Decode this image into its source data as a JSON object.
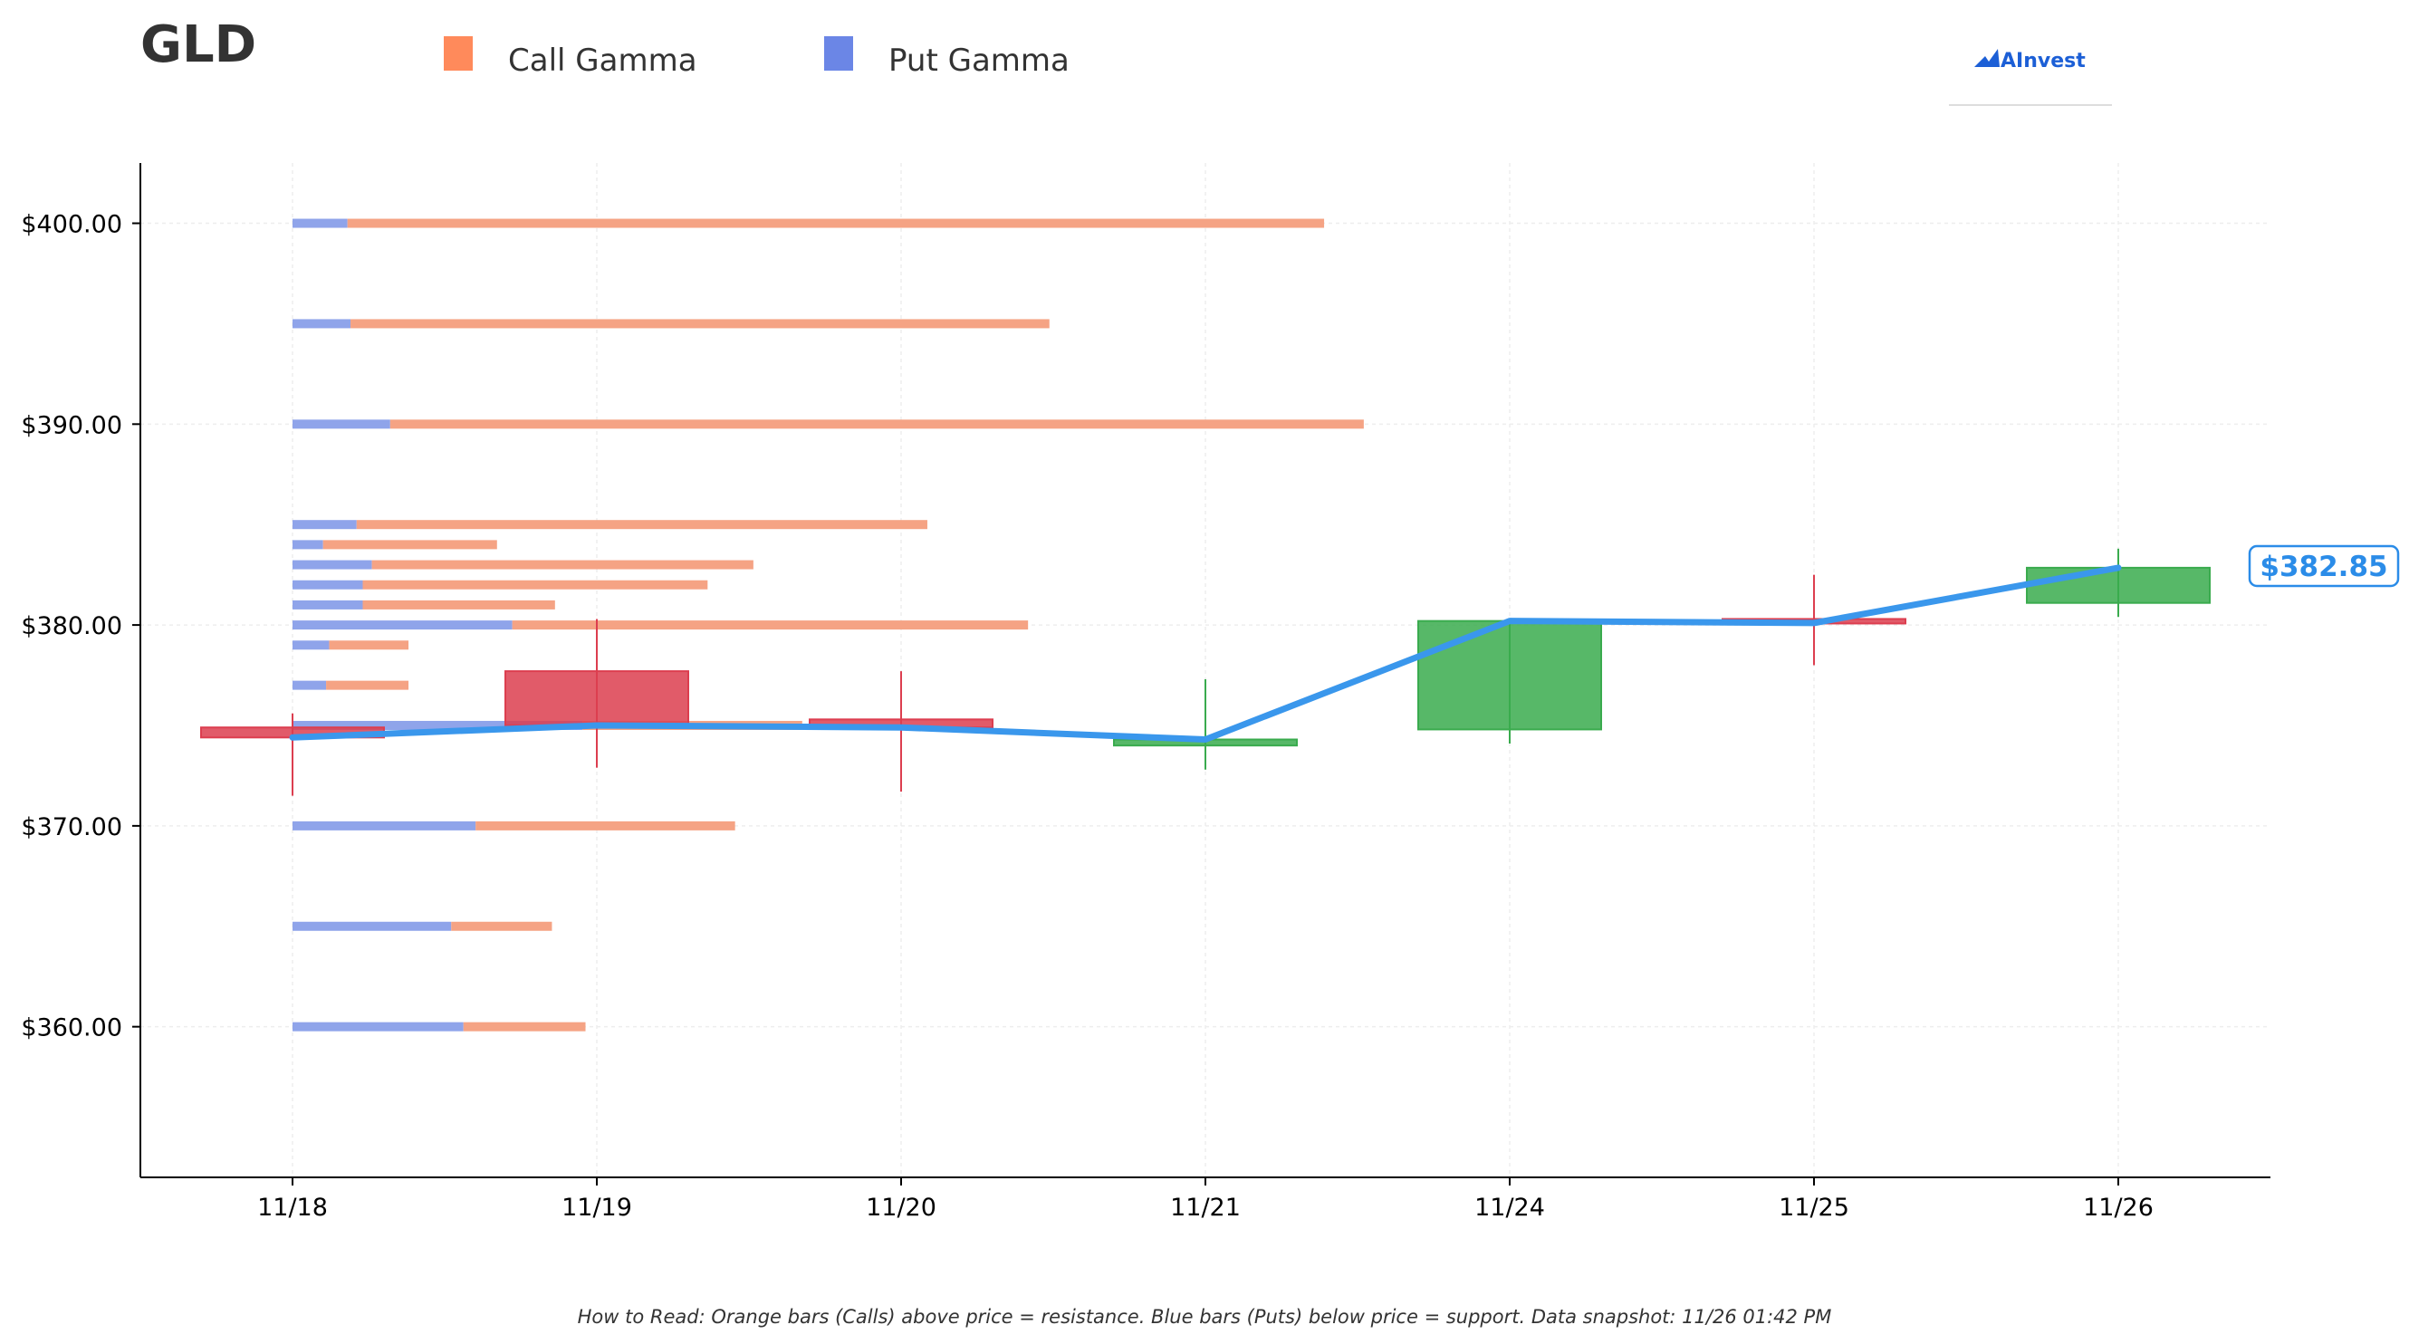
{
  "chart_data": {
    "type": "candlestick",
    "title": "GLD",
    "brand": "AInvest",
    "legend": [
      {
        "label": "Call Gamma",
        "color": "#ff8a5b"
      },
      {
        "label": "Put Gamma",
        "color": "#6b86e6"
      }
    ],
    "colors": {
      "call": "#f5a384",
      "put": "#8fa4ea",
      "up": "#3aab4e",
      "down": "#dc3e4f",
      "price_line": "#3a97ec",
      "grid": "#eeeeee"
    },
    "x_labels": [
      "11/18",
      "11/19",
      "11/20",
      "11/21",
      "11/24",
      "11/25",
      "11/26"
    ],
    "ylim": [
      352.5,
      403
    ],
    "y_ticks": [
      360,
      370,
      380,
      390,
      400
    ],
    "y_tick_labels": [
      "$360.00",
      "$370.00",
      "$380.00",
      "$390.00",
      "$400.00"
    ],
    "candles": [
      {
        "date": "11/18",
        "open": 374.9,
        "high": 375.6,
        "low": 371.5,
        "close": 374.4
      },
      {
        "date": "11/19",
        "open": 377.7,
        "high": 380.3,
        "low": 372.9,
        "close": 375.0
      },
      {
        "date": "11/20",
        "open": 375.3,
        "high": 377.7,
        "low": 371.7,
        "close": 374.9
      },
      {
        "date": "11/21",
        "open": 374.0,
        "high": 377.3,
        "low": 372.8,
        "close": 374.3
      },
      {
        "date": "11/24",
        "open": 374.8,
        "high": 380.3,
        "low": 374.1,
        "close": 380.2
      },
      {
        "date": "11/25",
        "open": 380.3,
        "high": 382.5,
        "low": 378.0,
        "close": 380.1
      },
      {
        "date": "11/26",
        "open": 381.1,
        "high": 383.8,
        "low": 380.4,
        "close": 382.85
      }
    ],
    "price_line": [
      374.4,
      375.0,
      374.9,
      374.3,
      380.2,
      380.1,
      382.85
    ],
    "last_price_label": "$382.85",
    "gamma_levels": [
      {
        "strike": 400,
        "put": 0.18,
        "call": 3.2
      },
      {
        "strike": 395,
        "put": 0.19,
        "call": 2.29
      },
      {
        "strike": 390,
        "put": 0.32,
        "call": 3.19
      },
      {
        "strike": 385,
        "put": 0.21,
        "call": 1.87
      },
      {
        "strike": 384,
        "put": 0.1,
        "call": 0.57
      },
      {
        "strike": 383,
        "put": 0.26,
        "call": 1.25
      },
      {
        "strike": 382,
        "put": 0.23,
        "call": 1.13
      },
      {
        "strike": 381,
        "put": 0.23,
        "call": 0.63
      },
      {
        "strike": 380,
        "put": 0.72,
        "call": 1.69
      },
      {
        "strike": 379,
        "put": 0.12,
        "call": 0.26
      },
      {
        "strike": 377,
        "put": 0.11,
        "call": 0.27
      },
      {
        "strike": 375,
        "put": 0.95,
        "call": 0.72
      },
      {
        "strike": 370,
        "put": 0.6,
        "call": 0.85
      },
      {
        "strike": 365,
        "put": 0.52,
        "call": 0.33
      },
      {
        "strike": 360,
        "put": 0.56,
        "call": 0.4
      }
    ],
    "footer": "How to Read: Orange bars (Calls) above price = resistance. Blue bars (Puts) below price = support. Data snapshot: 11/26 01:42 PM"
  }
}
